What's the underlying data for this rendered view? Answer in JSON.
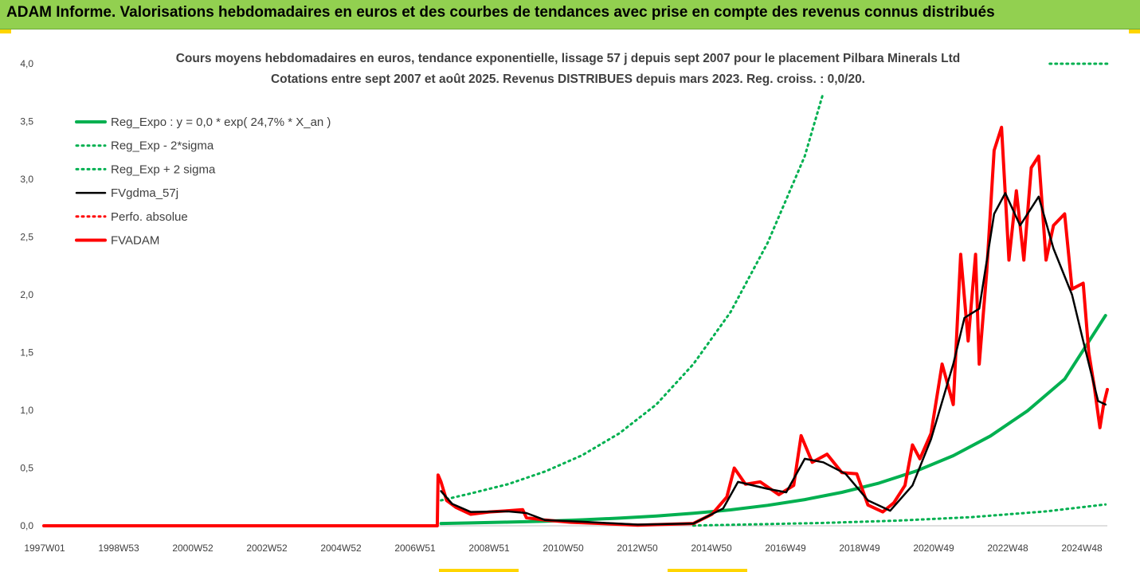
{
  "banner": {
    "title": "ADAM Informe. Valorisations hebdomadaires en euros et des courbes de tendances avec prise en compte des revenus connus distribués",
    "background": "#92d050"
  },
  "chart_data": {
    "type": "line",
    "title_lines": [
      "Cours moyens hebdomadaires en euros, tendance exponentielle, lissage 57 j depuis sept 2007 pour le placement Pilbara Minerals Ltd",
      "Cotations entre sept 2007 et août 2025. Revenus DISTRIBUES depuis mars 2023. Reg. croiss. : 0,0/20."
    ],
    "xlabel": "",
    "ylabel": "",
    "x_ticks": [
      "1997W01",
      "1998W53",
      "2000W52",
      "2002W52",
      "2004W52",
      "2006W51",
      "2008W51",
      "2010W50",
      "2012W50",
      "2014W50",
      "2016W49",
      "2018W49",
      "2020W49",
      "2022W48",
      "2024W48"
    ],
    "xlim": [
      1997.0,
      2025.65
    ],
    "y_ticks": [
      "0,0",
      "0,5",
      "1,0",
      "1,5",
      "2,0",
      "2,5",
      "3,0",
      "3,5",
      "4,0"
    ],
    "ylim": [
      0,
      4.0
    ],
    "grid": false,
    "legend_position": "top-left",
    "series": [
      {
        "name": "Reg_Expo : y = 0,0 * exp( 24,7% *  X_an )",
        "color": "#00b050",
        "style": "solid-thick",
        "points": [
          [
            2007.7,
            0.02
          ],
          [
            2008.5,
            0.025
          ],
          [
            2009.5,
            0.032
          ],
          [
            2010.5,
            0.04
          ],
          [
            2011.5,
            0.052
          ],
          [
            2012.5,
            0.066
          ],
          [
            2013.5,
            0.085
          ],
          [
            2014.5,
            0.108
          ],
          [
            2015.5,
            0.138
          ],
          [
            2016.5,
            0.177
          ],
          [
            2017.5,
            0.227
          ],
          [
            2018.5,
            0.29
          ],
          [
            2019.5,
            0.37
          ],
          [
            2020.5,
            0.474
          ],
          [
            2021.5,
            0.607
          ],
          [
            2022.5,
            0.777
          ],
          [
            2023.5,
            0.995
          ],
          [
            2024.5,
            1.27
          ],
          [
            2025.6,
            1.82
          ]
        ]
      },
      {
        "name": "Reg_Exp - 2*sigma",
        "color": "#00b050",
        "style": "dotted",
        "points": [
          [
            2014.5,
            0.002
          ],
          [
            2016.0,
            0.012
          ],
          [
            2018.0,
            0.025
          ],
          [
            2020.0,
            0.045
          ],
          [
            2022.0,
            0.075
          ],
          [
            2024.0,
            0.125
          ],
          [
            2025.6,
            0.185
          ]
        ]
      },
      {
        "name": "Reg_Exp + 2 sigma",
        "color": "#00b050",
        "style": "dotted",
        "points": [
          [
            2007.7,
            0.22
          ],
          [
            2008.5,
            0.28
          ],
          [
            2009.5,
            0.36
          ],
          [
            2010.5,
            0.47
          ],
          [
            2011.5,
            0.61
          ],
          [
            2012.5,
            0.8
          ],
          [
            2013.5,
            1.05
          ],
          [
            2014.5,
            1.4
          ],
          [
            2015.5,
            1.85
          ],
          [
            2016.5,
            2.45
          ],
          [
            2017.5,
            3.2
          ],
          [
            2018.0,
            3.75
          ]
        ]
      },
      {
        "name": "FVgdma_57j",
        "color": "#000000",
        "style": "solid",
        "points": [
          [
            2007.7,
            0.3
          ],
          [
            2008.0,
            0.19
          ],
          [
            2008.5,
            0.12
          ],
          [
            2009.5,
            0.125
          ],
          [
            2010.0,
            0.11
          ],
          [
            2010.5,
            0.05
          ],
          [
            2011.5,
            0.035
          ],
          [
            2013.0,
            0.01
          ],
          [
            2014.5,
            0.02
          ],
          [
            2015.3,
            0.15
          ],
          [
            2015.7,
            0.38
          ],
          [
            2016.5,
            0.32
          ],
          [
            2017.0,
            0.29
          ],
          [
            2017.5,
            0.58
          ],
          [
            2018.0,
            0.55
          ],
          [
            2018.6,
            0.45
          ],
          [
            2019.2,
            0.22
          ],
          [
            2019.8,
            0.13
          ],
          [
            2020.4,
            0.35
          ],
          [
            2020.9,
            0.75
          ],
          [
            2021.5,
            1.4
          ],
          [
            2021.8,
            1.8
          ],
          [
            2022.2,
            1.88
          ],
          [
            2022.6,
            2.7
          ],
          [
            2022.9,
            2.88
          ],
          [
            2023.3,
            2.6
          ],
          [
            2023.8,
            2.85
          ],
          [
            2024.2,
            2.4
          ],
          [
            2024.7,
            2.0
          ],
          [
            2025.0,
            1.6
          ],
          [
            2025.4,
            1.08
          ],
          [
            2025.6,
            1.05
          ]
        ]
      },
      {
        "name": "Perfo. absolue",
        "color": "#ff0000",
        "style": "dotted",
        "points": [
          [
            1997.0,
            0.0
          ],
          [
            2007.6,
            0.0
          ]
        ]
      },
      {
        "name": "FVADAM",
        "color": "#ff0000",
        "style": "solid-thick",
        "points": [
          [
            1997.0,
            0.0
          ],
          [
            2007.6,
            0.0
          ],
          [
            2007.62,
            0.44
          ],
          [
            2007.7,
            0.38
          ],
          [
            2007.85,
            0.22
          ],
          [
            2008.1,
            0.16
          ],
          [
            2008.5,
            0.1
          ],
          [
            2009.0,
            0.12
          ],
          [
            2009.5,
            0.13
          ],
          [
            2009.9,
            0.14
          ],
          [
            2010.0,
            0.07
          ],
          [
            2010.5,
            0.05
          ],
          [
            2011.2,
            0.03
          ],
          [
            2012.0,
            0.02
          ],
          [
            2013.0,
            0.005
          ],
          [
            2014.5,
            0.02
          ],
          [
            2015.0,
            0.1
          ],
          [
            2015.4,
            0.25
          ],
          [
            2015.6,
            0.5
          ],
          [
            2015.9,
            0.36
          ],
          [
            2016.3,
            0.38
          ],
          [
            2016.8,
            0.27
          ],
          [
            2017.2,
            0.35
          ],
          [
            2017.4,
            0.78
          ],
          [
            2017.7,
            0.55
          ],
          [
            2018.1,
            0.62
          ],
          [
            2018.5,
            0.46
          ],
          [
            2018.9,
            0.45
          ],
          [
            2019.2,
            0.18
          ],
          [
            2019.6,
            0.12
          ],
          [
            2019.9,
            0.2
          ],
          [
            2020.2,
            0.35
          ],
          [
            2020.4,
            0.7
          ],
          [
            2020.6,
            0.58
          ],
          [
            2020.9,
            0.8
          ],
          [
            2021.2,
            1.4
          ],
          [
            2021.5,
            1.05
          ],
          [
            2021.7,
            2.35
          ],
          [
            2021.9,
            1.6
          ],
          [
            2022.1,
            2.35
          ],
          [
            2022.2,
            1.4
          ],
          [
            2022.4,
            2.2
          ],
          [
            2022.6,
            3.25
          ],
          [
            2022.8,
            3.45
          ],
          [
            2023.0,
            2.3
          ],
          [
            2023.2,
            2.9
          ],
          [
            2023.4,
            2.3
          ],
          [
            2023.6,
            3.1
          ],
          [
            2023.8,
            3.2
          ],
          [
            2024.0,
            2.3
          ],
          [
            2024.2,
            2.6
          ],
          [
            2024.5,
            2.7
          ],
          [
            2024.7,
            2.05
          ],
          [
            2025.0,
            2.1
          ],
          [
            2025.15,
            1.5
          ],
          [
            2025.3,
            1.2
          ],
          [
            2025.45,
            0.85
          ],
          [
            2025.55,
            1.05
          ],
          [
            2025.65,
            1.18
          ]
        ]
      }
    ],
    "annotation_line": {
      "color": "#00b050",
      "style": "dotted",
      "y": 4.0,
      "x_from": 2024.1,
      "x_to": 2025.65
    }
  }
}
